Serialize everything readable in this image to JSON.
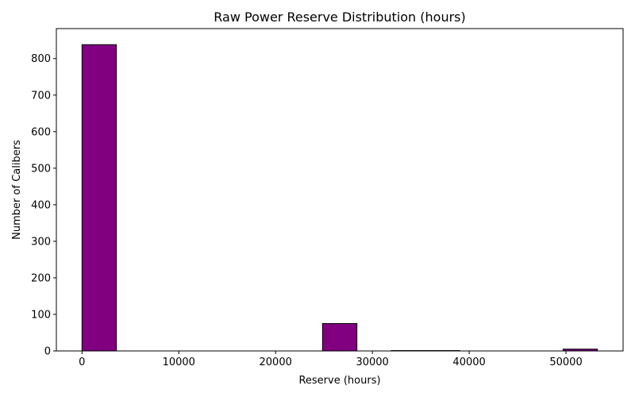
{
  "chart_data": {
    "type": "bar",
    "title": "Raw Power Reserve Distribution (hours)",
    "xlabel": "Reserve (hours)",
    "ylabel": "Number of Calibers",
    "xlim": [
      -2650,
      55900
    ],
    "ylim": [
      0,
      882
    ],
    "x_ticks": [
      0,
      10000,
      20000,
      30000,
      40000,
      50000
    ],
    "y_ticks": [
      0,
      100,
      200,
      300,
      400,
      500,
      600,
      700,
      800
    ],
    "bar_color": "#800080",
    "edge_color": "#000000",
    "bins": [
      {
        "x0": 0,
        "x1": 3550,
        "count": 838
      },
      {
        "x0": 3550,
        "x1": 7100,
        "count": 0
      },
      {
        "x0": 7100,
        "x1": 10650,
        "count": 0
      },
      {
        "x0": 10650,
        "x1": 14200,
        "count": 0
      },
      {
        "x0": 14200,
        "x1": 17750,
        "count": 0
      },
      {
        "x0": 17750,
        "x1": 21300,
        "count": 0
      },
      {
        "x0": 21300,
        "x1": 24850,
        "count": 0
      },
      {
        "x0": 24850,
        "x1": 28400,
        "count": 75
      },
      {
        "x0": 28400,
        "x1": 31950,
        "count": 0
      },
      {
        "x0": 31950,
        "x1": 35500,
        "count": 1
      },
      {
        "x0": 35500,
        "x1": 39050,
        "count": 1
      },
      {
        "x0": 39050,
        "x1": 42600,
        "count": 0
      },
      {
        "x0": 42600,
        "x1": 46150,
        "count": 0
      },
      {
        "x0": 46150,
        "x1": 49700,
        "count": 0
      },
      {
        "x0": 49700,
        "x1": 53250,
        "count": 5
      }
    ]
  }
}
